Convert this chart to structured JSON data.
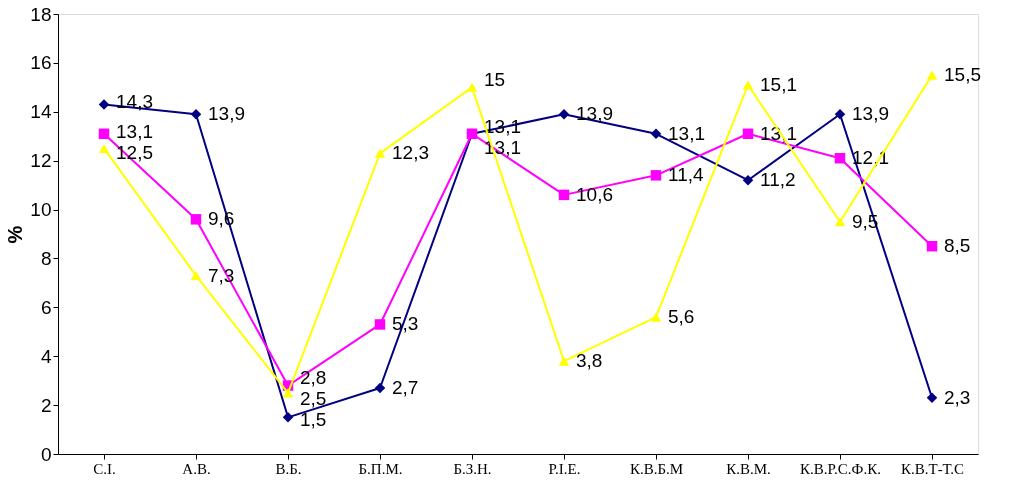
{
  "chart_data": {
    "type": "line",
    "ylabel": "%",
    "categories": [
      "С.І.",
      "А.В.",
      "В.Б.",
      "Б.П.М.",
      "Б.З.Н.",
      "Р.І.Е.",
      "К.В.Б.М",
      "К.В.М.",
      "К.В.Р.С.Ф.К.",
      "К.В.Т-Т.С"
    ],
    "series": [
      {
        "color": "#000080",
        "marker": "diamond",
        "values": [
          14.3,
          13.9,
          1.5,
          2.7,
          13.1,
          13.9,
          13.1,
          11.2,
          13.9,
          2.3
        ],
        "value_labels": [
          "14,3",
          "13,9",
          "1,5",
          "2,7",
          "13,1",
          "13,9",
          "13,1",
          "11,2",
          "13,9",
          "2,3"
        ]
      },
      {
        "color": "#ff00ff",
        "marker": "square",
        "values": [
          13.1,
          9.6,
          2.8,
          5.3,
          13.1,
          10.6,
          11.4,
          13.1,
          12.1,
          8.5
        ],
        "value_labels": [
          "13,1",
          "9,6",
          "2,8",
          "5,3",
          "13,1",
          "10,6",
          "11,4",
          "13,1",
          "12,1",
          "8,5"
        ]
      },
      {
        "color": "#ffff00",
        "marker": "triangle",
        "values": [
          12.5,
          7.3,
          2.5,
          12.3,
          15,
          3.8,
          5.6,
          15.1,
          9.5,
          15.5
        ],
        "value_labels": [
          "12,5",
          "7,3",
          "2,5",
          "12,3",
          "15",
          "3,8",
          "5,6",
          "15,1",
          "9,5",
          "15,5"
        ]
      }
    ],
    "ylim": [
      0,
      18
    ],
    "yticks": [
      0,
      2,
      4,
      6,
      8,
      10,
      12,
      14,
      16,
      18
    ],
    "grid": false
  }
}
